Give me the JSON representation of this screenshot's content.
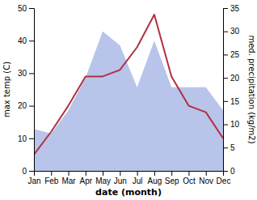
{
  "chart_data": {
    "type": "line",
    "xlabel": "date (month)",
    "ylabel": "max temp (C)",
    "y2label": "med. precipitation (kg/m2)",
    "categories": [
      "Jan",
      "Feb",
      "Mar",
      "Apr",
      "May",
      "Jun",
      "Jul",
      "Aug",
      "Sep",
      "Oct",
      "Nov",
      "Dec"
    ],
    "series": [
      {
        "type": "area",
        "color": "#b8c4ea",
        "axis": "y2",
        "values": [
          9,
          8,
          13,
          20,
          30,
          27,
          18,
          28,
          18,
          18,
          18,
          13
        ]
      },
      {
        "type": "line",
        "color": "#b03040",
        "values": [
          5,
          12,
          20,
          29,
          29,
          31,
          38,
          48,
          29,
          20,
          18,
          10
        ]
      }
    ],
    "ylim": [
      0,
      50
    ],
    "yticks": [
      0,
      10,
      20,
      30,
      40,
      50
    ],
    "y2lim": [
      0,
      35
    ],
    "y2ticks": [
      0,
      5,
      10,
      15,
      20,
      25,
      30,
      35
    ],
    "grid": false
  }
}
